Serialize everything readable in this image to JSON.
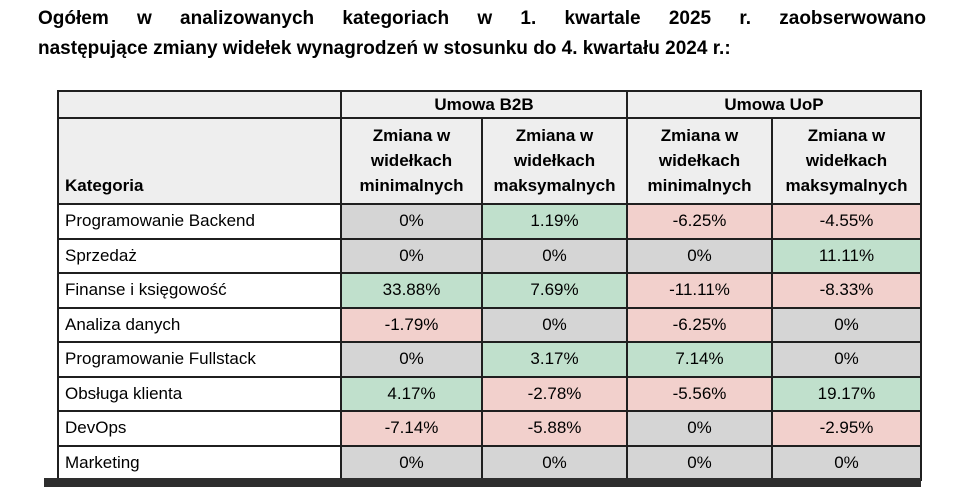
{
  "heading": {
    "line1": "Ogółem w analizowanych kategoriach w 1. kwartale 2025 r. zaobserwowano",
    "line2": "następujące zmiany widełek wynagrodzeń w stosunku do 4. kwartału 2024 r.:"
  },
  "table": {
    "group_headers": {
      "b2b": "Umowa B2B",
      "uop": "Umowa UoP"
    },
    "column_headers": [
      "Kategoria",
      "Zmiana w widełkach minimalnych",
      "Zmiana w widełkach maksymalnych",
      "Zmiana w widełkach minimalnych",
      "Zmiana w widełkach maksymalnych"
    ],
    "rows": [
      {
        "category": "Programowanie Backend",
        "values": [
          "0%",
          "1.19%",
          "-6.25%",
          "-4.55%"
        ],
        "tones": [
          "zero",
          "up",
          "down",
          "down"
        ]
      },
      {
        "category": "Sprzedaż",
        "values": [
          "0%",
          "0%",
          "0%",
          "11.11%"
        ],
        "tones": [
          "zero",
          "zero",
          "zero",
          "up"
        ]
      },
      {
        "category": "Finanse i księgowość",
        "values": [
          "33.88%",
          "7.69%",
          "-11.11%",
          "-8.33%"
        ],
        "tones": [
          "up",
          "up",
          "down",
          "down"
        ]
      },
      {
        "category": "Analiza danych",
        "values": [
          "-1.79%",
          "0%",
          "-6.25%",
          "0%"
        ],
        "tones": [
          "down",
          "zero",
          "down",
          "zero"
        ]
      },
      {
        "category": "Programowanie Fullstack",
        "values": [
          "0%",
          "3.17%",
          "7.14%",
          "0%"
        ],
        "tones": [
          "zero",
          "up",
          "up",
          "zero"
        ]
      },
      {
        "category": "Obsługa klienta",
        "values": [
          "4.17%",
          "-2.78%",
          "-5.56%",
          "19.17%"
        ],
        "tones": [
          "up",
          "down",
          "down",
          "up"
        ]
      },
      {
        "category": "DevOps",
        "values": [
          "-7.14%",
          "-5.88%",
          "0%",
          "-2.95%"
        ],
        "tones": [
          "down",
          "down",
          "zero",
          "down"
        ]
      },
      {
        "category": "Marketing",
        "values": [
          "0%",
          "0%",
          "0%",
          "0%"
        ],
        "tones": [
          "zero",
          "zero",
          "zero",
          "zero"
        ]
      }
    ]
  },
  "colors": {
    "positive": "#c0e0cc",
    "negative": "#f2d0cc",
    "zero": "#d5d5d5",
    "header_bg": "#eeeeee",
    "border": "#1f1f1f"
  }
}
